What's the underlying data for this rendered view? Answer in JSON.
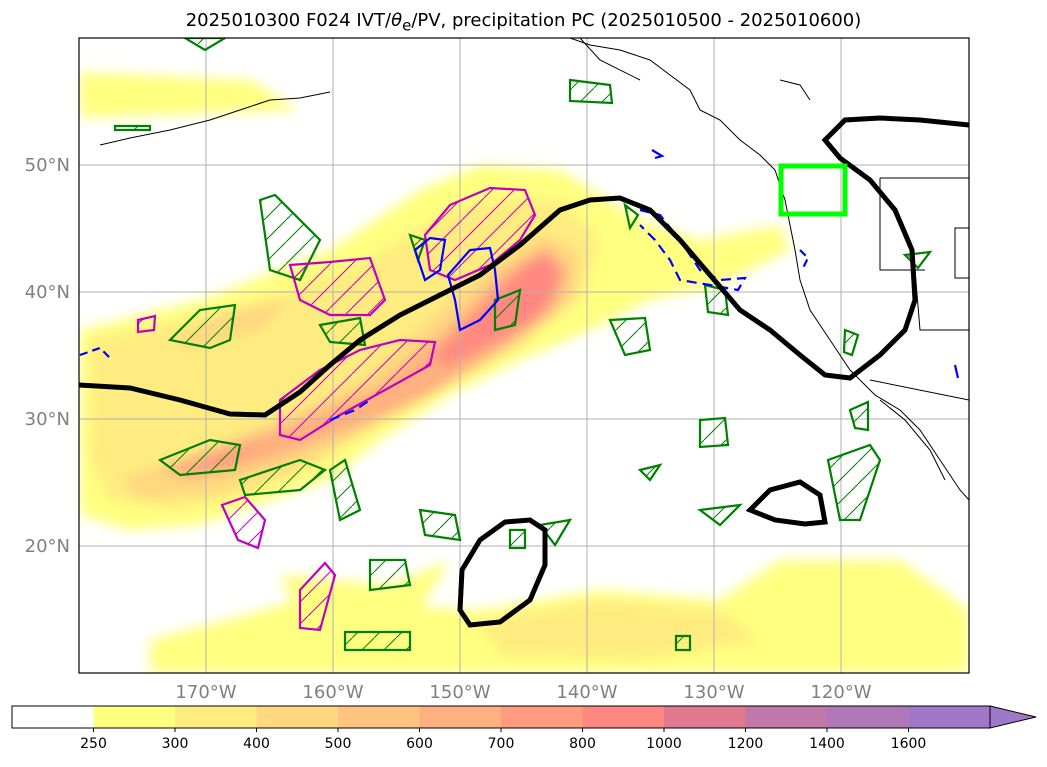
{
  "title_prefix": "2025010300 F024 IVT/",
  "title_theta": "θ",
  "title_sub": "e",
  "title_suffix": "/PV, precipitation PC (2025010500 - 2025010600)",
  "map": {
    "lat_labels": [
      "50°N",
      "40°N",
      "30°N",
      "20°N"
    ],
    "lon_labels": [
      "170°W",
      "160°W",
      "150°W",
      "140°W",
      "130°W",
      "120°W"
    ],
    "box_color": "#00ff00",
    "contour_black": "#000000",
    "contour_green": "#008000",
    "contour_magenta": "#bf00bf",
    "contour_blue": "#0000ff"
  },
  "colorbar": {
    "labels": [
      "250",
      "300",
      "400",
      "500",
      "600",
      "700",
      "800",
      "1000",
      "1200",
      "1400",
      "1600"
    ],
    "colors": [
      "#ffffff",
      "#ffff80",
      "#ffec80",
      "#ffd880",
      "#ffc480",
      "#ffb080",
      "#ff9c80",
      "#ff8880",
      "#e07890",
      "#c078a8",
      "#b078b8",
      "#a078c8"
    ]
  }
}
